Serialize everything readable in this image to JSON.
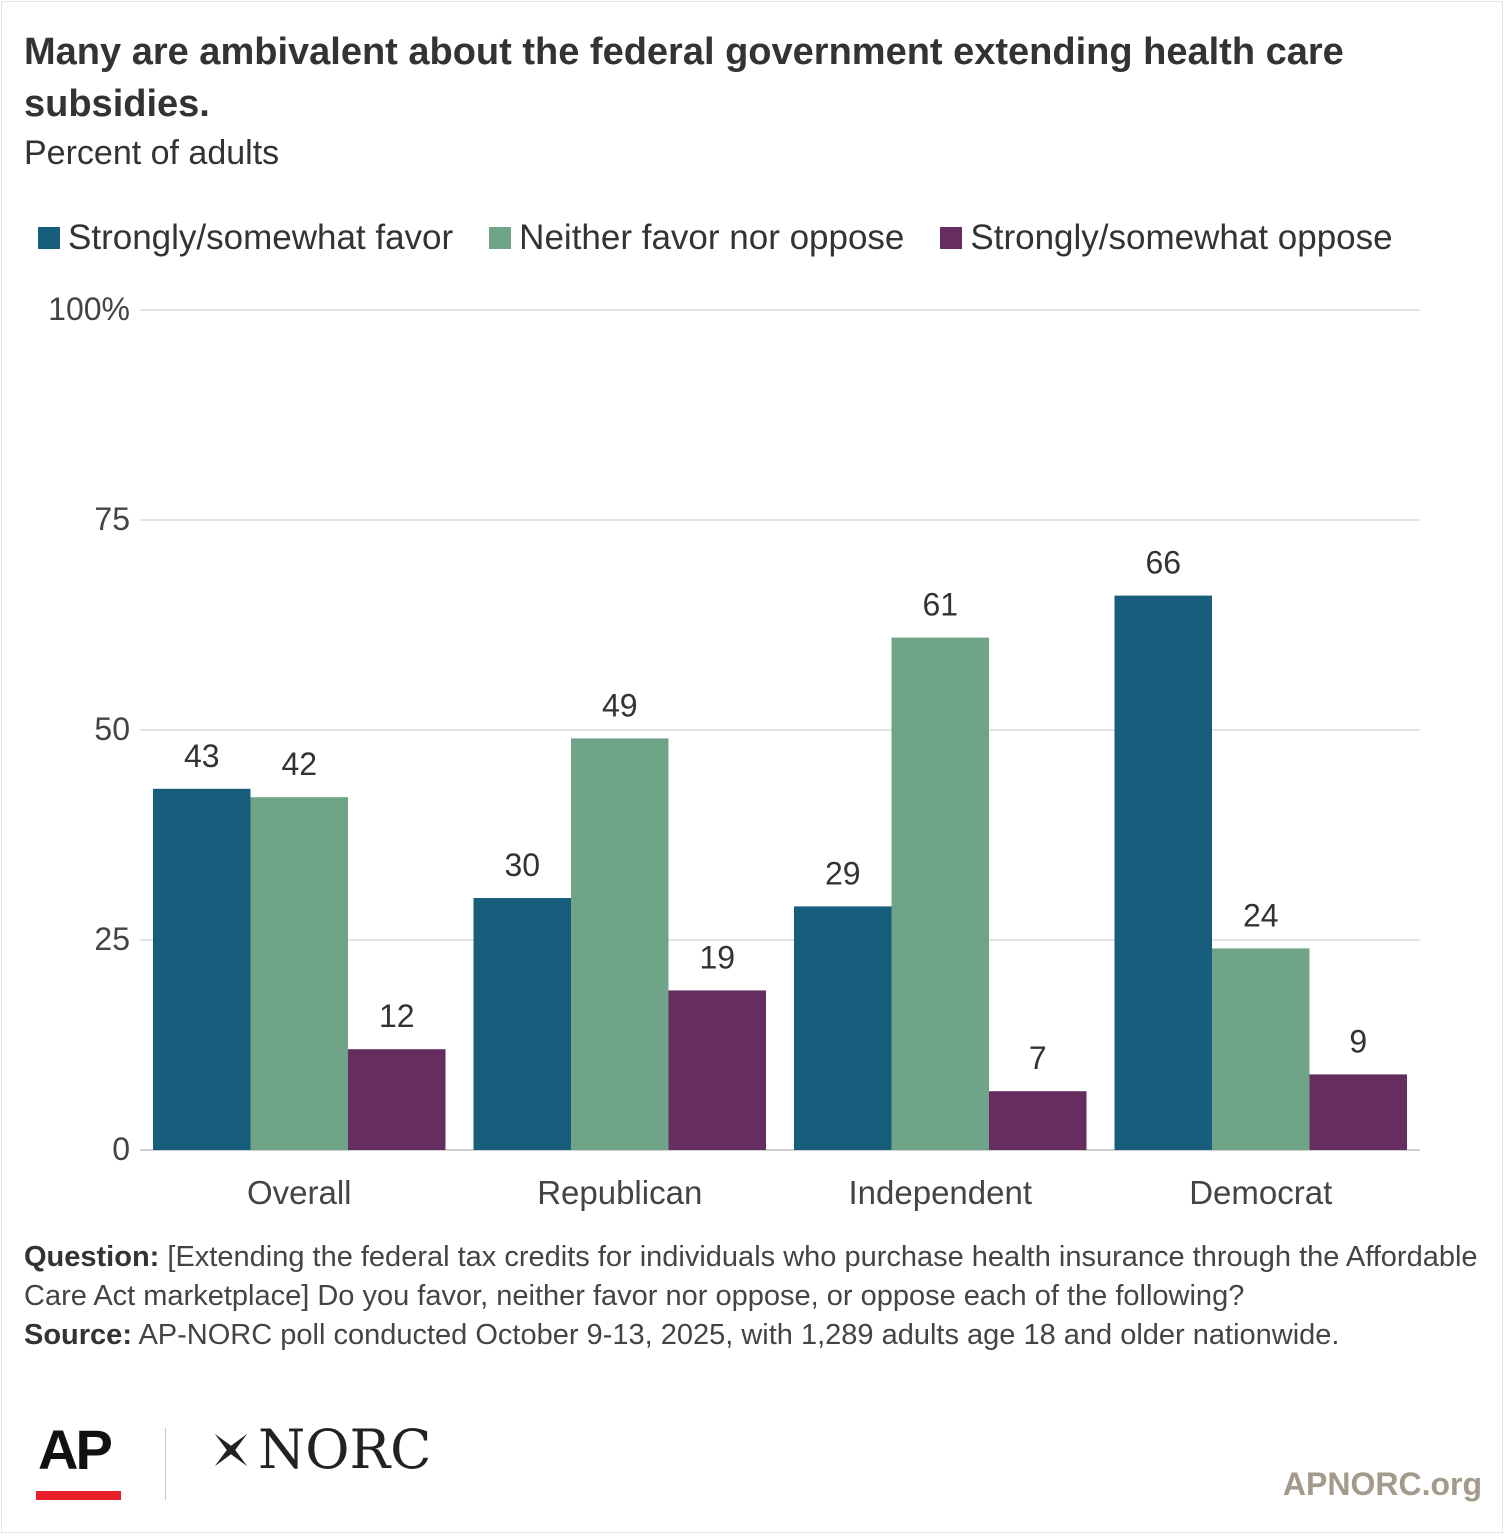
{
  "title": "Many are ambivalent about the federal government extending health care subsidies.",
  "subtitle": "Percent of adults",
  "colors": {
    "favor": "#175e7c",
    "neither": "#70a488",
    "oppose": "#662e60"
  },
  "chart_data": {
    "type": "bar",
    "categories": [
      "Overall",
      "Republican",
      "Independent",
      "Democrat"
    ],
    "series": [
      {
        "name": "Strongly/somewhat favor",
        "values": [
          43,
          30,
          29,
          66
        ]
      },
      {
        "name": "Neither favor nor oppose",
        "values": [
          42,
          49,
          61,
          24
        ]
      },
      {
        "name": "Strongly/somewhat oppose",
        "values": [
          12,
          19,
          7,
          9
        ]
      }
    ],
    "ylim": [
      0,
      100
    ],
    "yticks": [
      "0",
      "25",
      "50",
      "75",
      "100%"
    ],
    "ytick_values": [
      0,
      25,
      50,
      75,
      100
    ],
    "grid": true,
    "legend": "top",
    "xlabel": "",
    "ylabel": ""
  },
  "notes": {
    "question_label": "Question:",
    "question_text": "[Extending the federal tax credits for individuals who purchase health insurance through the Affordable Care Act marketplace] Do you favor, neither favor nor oppose, or oppose each of the following?",
    "source_label": "Source:",
    "source_text": "AP-NORC poll conducted October 9-13, 2025, with 1,289 adults age 18 and older nationwide."
  },
  "logos": {
    "ap": "AP",
    "norc": "NORC"
  },
  "site": "APNORC.org"
}
